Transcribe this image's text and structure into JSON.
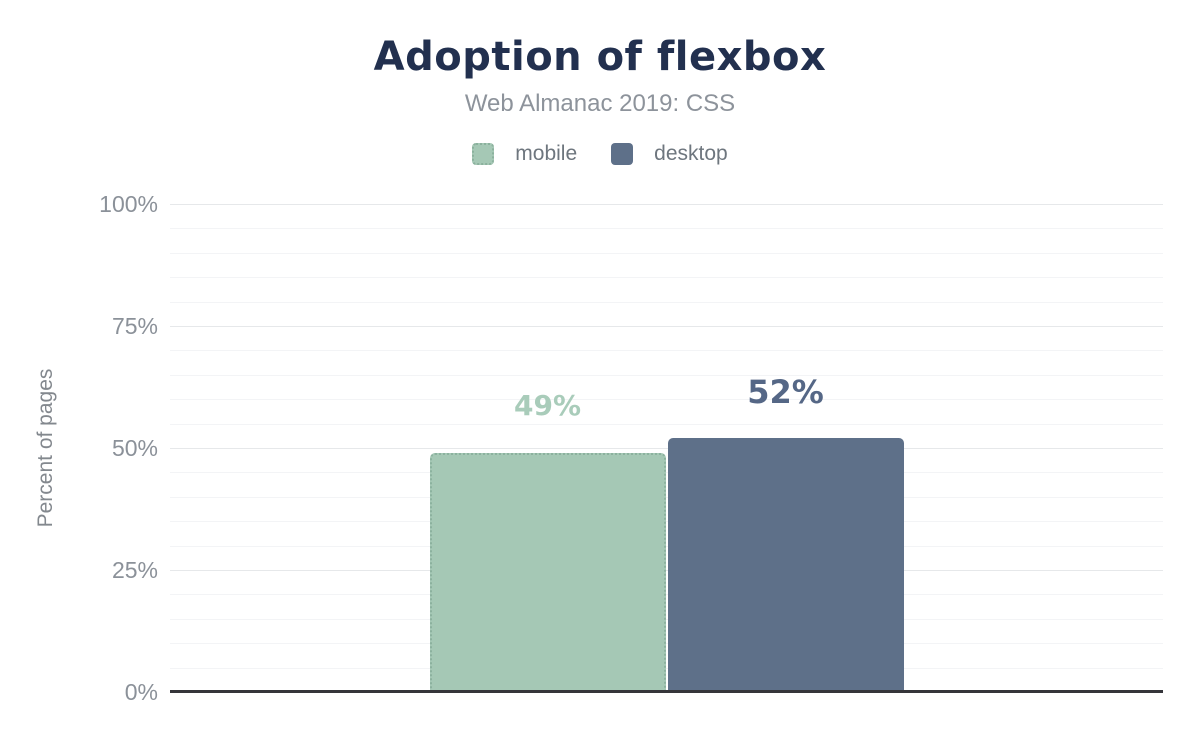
{
  "chart_data": {
    "type": "bar",
    "title": "Adoption of flexbox",
    "subtitle": "Web Almanac 2019: CSS",
    "ylabel": "Percent of pages",
    "ylim": [
      0,
      100
    ],
    "yticks": [
      {
        "value": 0,
        "label": "0%"
      },
      {
        "value": 25,
        "label": "25%"
      },
      {
        "value": 50,
        "label": "50%"
      },
      {
        "value": 75,
        "label": "75%"
      },
      {
        "value": 100,
        "label": "100%"
      }
    ],
    "minor_tick_step": 5,
    "grid": true,
    "legend_position": "top",
    "series": [
      {
        "name": "mobile",
        "value": 49,
        "label": "49%",
        "color": "#a5c8b5",
        "label_color": "#a9ccba",
        "label_size": 28,
        "border": "dotted"
      },
      {
        "name": "desktop",
        "value": 52,
        "label": "52%",
        "color": "#5e7089",
        "label_color": "#556786",
        "label_size": 32,
        "border": "none"
      }
    ]
  },
  "colors": {
    "title": "#22304f",
    "subtitle": "#8d939b",
    "axis_text": "#8b9199",
    "gridline_major": "#e6e8ea",
    "gridline_minor": "#f3f4f6",
    "axis_line": "#35353a",
    "background": "#ffffff"
  }
}
